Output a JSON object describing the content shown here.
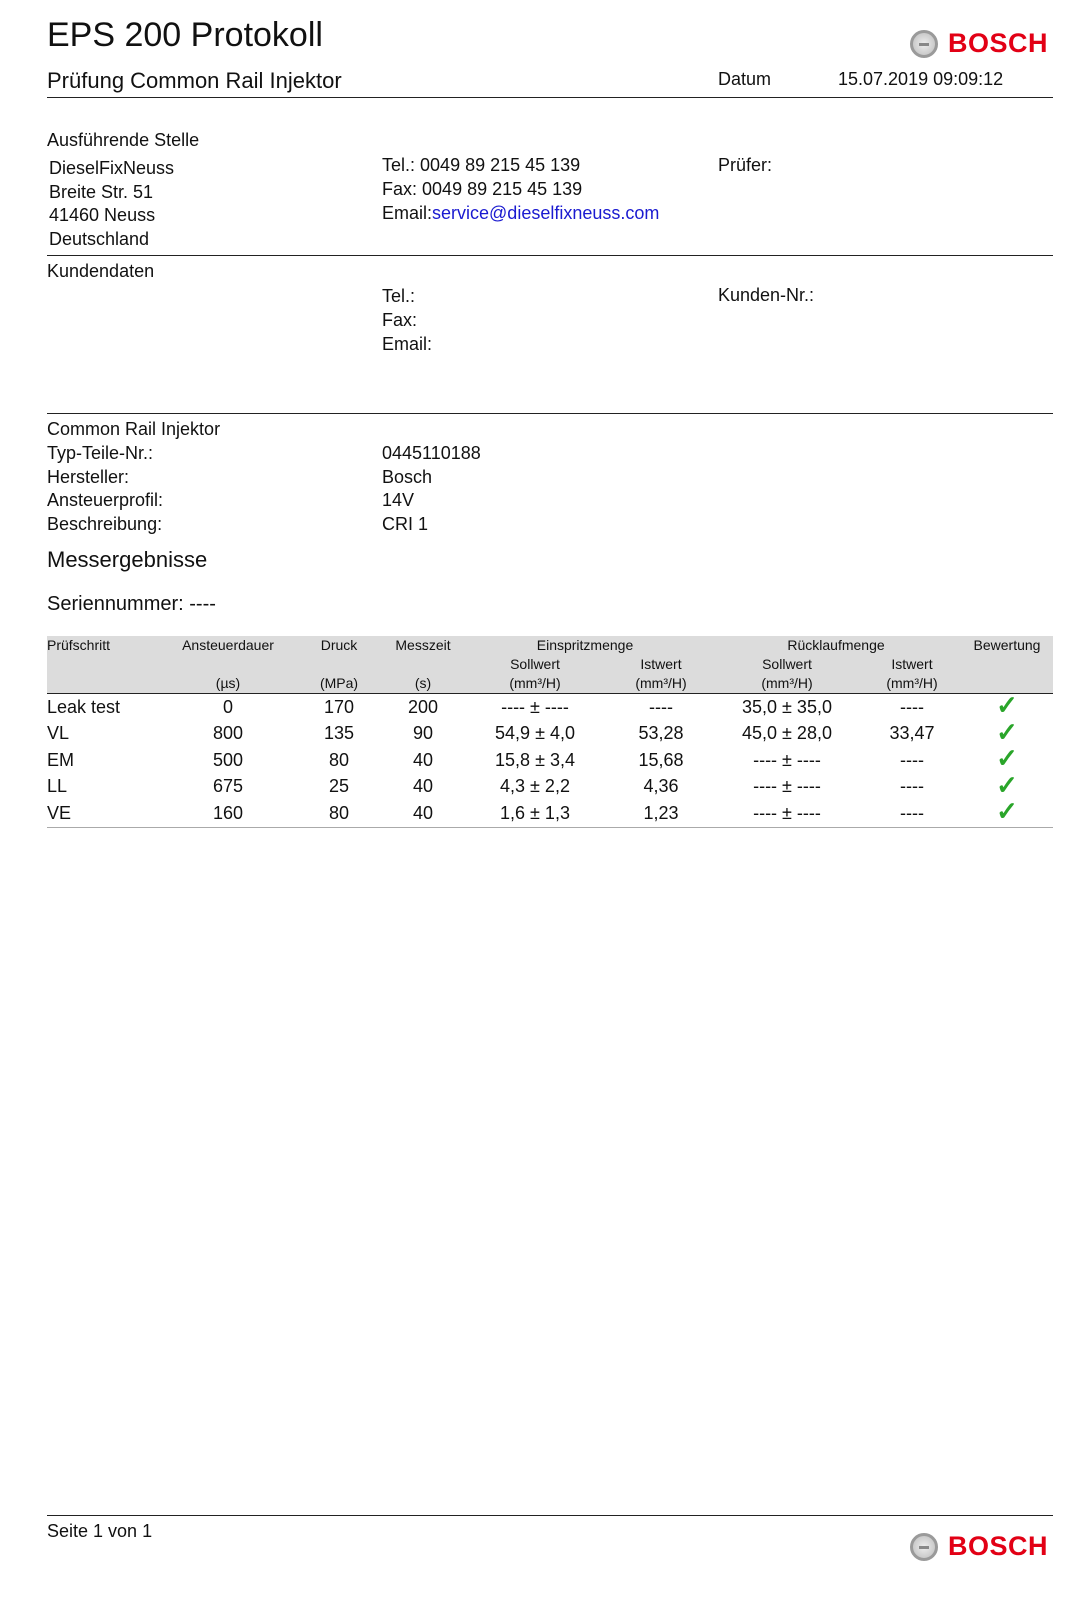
{
  "header": {
    "title": "EPS 200 Protokoll",
    "subtitle": "Prüfung Common Rail Injektor",
    "datum_label": "Datum",
    "datum_value": "15.07.2019 09:09:12",
    "logo_text": "BOSCH"
  },
  "station": {
    "heading": "Ausführende Stelle",
    "address": [
      "DieselFixNeuss",
      "Breite Str. 51",
      "41460 Neuss",
      "Deutschland"
    ],
    "tel_label": "Tel.:",
    "tel": "0049 89 215 45 139",
    "fax_label": "Fax:",
    "fax": "0049 89 215 45 139",
    "email_label": "Email:",
    "email": "service@dieselfixneuss.com",
    "pruefer_label": "Prüfer:"
  },
  "customer": {
    "heading": "Kundendaten",
    "tel_label": "Tel.:",
    "fax_label": "Fax:",
    "email_label": "Email:",
    "kunden_nr_label": "Kunden-Nr.:"
  },
  "injector": {
    "heading": "Common Rail Injektor",
    "fields": [
      {
        "label": "Typ-Teile-Nr.:",
        "value": "0445110188"
      },
      {
        "label": "Hersteller:",
        "value": "Bosch"
      },
      {
        "label": "Ansteuerprofil:",
        "value": "14V"
      },
      {
        "label": "Beschreibung:",
        "value": "CRI 1"
      }
    ]
  },
  "results": {
    "heading": "Messergebnisse",
    "serial": "Seriennummer: ----",
    "headers": {
      "step": "Prüfschritt",
      "duration": "Ansteuerdauer",
      "pressure": "Druck",
      "time": "Messzeit",
      "injection": "Einspritzmenge",
      "return": "Rücklaufmenge",
      "rating": "Bewertung",
      "sollwert": "Sollwert",
      "istwert": "Istwert",
      "unit_duration": "(µs)",
      "unit_pressure": "(MPa)",
      "unit_time": "(s)",
      "unit_flow": "(mm³/H)"
    },
    "rows": [
      [
        "Leak test",
        "0",
        "170",
        "200",
        "---- ± ----",
        "----",
        "35,0 ± 35,0",
        "----"
      ],
      [
        "VL",
        "800",
        "135",
        "90",
        "54,9 ± 4,0",
        "53,28",
        "45,0 ± 28,0",
        "33,47"
      ],
      [
        "EM",
        "500",
        "80",
        "40",
        "15,8 ± 3,4",
        "15,68",
        "---- ± ----",
        "----"
      ],
      [
        "LL",
        "675",
        "25",
        "40",
        "4,3 ± 2,2",
        "4,36",
        "---- ± ----",
        "----"
      ],
      [
        "VE",
        "160",
        "80",
        "40",
        "1,6 ± 1,3",
        "1,23",
        "---- ± ----",
        "----"
      ]
    ],
    "rating_icon": "check-icon",
    "rating_color": "#2aa52a"
  },
  "footer": {
    "page": "Seite 1 von 1",
    "logo_text": "BOSCH"
  }
}
